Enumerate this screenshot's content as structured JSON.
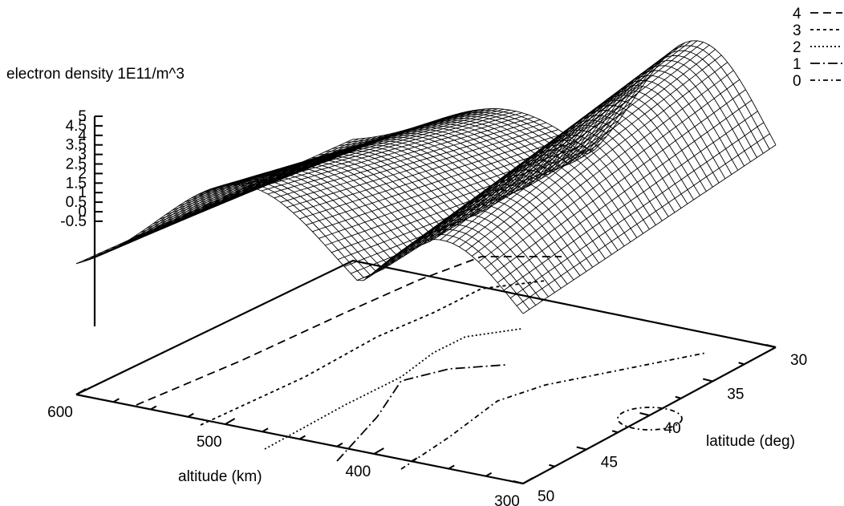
{
  "chart_data": {
    "type": "surface",
    "zlabel": "electron density 1E11/m^3",
    "xlabel": "altitude (km)",
    "ylabel": "latitude (deg)",
    "z_ticks": [
      "5",
      "4.5",
      "4",
      "3.5",
      "3",
      "2.5",
      "2",
      "1.5",
      "1",
      "0.5",
      "0",
      "-0.5"
    ],
    "zlim": [
      -0.5,
      5
    ],
    "x_ticks": [
      "600",
      "500",
      "400",
      "300"
    ],
    "xlim": [
      300,
      600
    ],
    "y_ticks": [
      "30",
      "35",
      "40",
      "45",
      "50"
    ],
    "ylim": [
      30,
      50
    ],
    "contour_levels": [
      {
        "name": "4",
        "dash": "10,6"
      },
      {
        "name": "3",
        "dash": "4,4"
      },
      {
        "name": "2",
        "dash": "2,3"
      },
      {
        "name": "1",
        "dash": "12,4,2,4"
      },
      {
        "name": "0",
        "dash": "6,4,2,4"
      }
    ],
    "legend_position": "top-right",
    "surface_peak_value": 5,
    "grid": false
  }
}
